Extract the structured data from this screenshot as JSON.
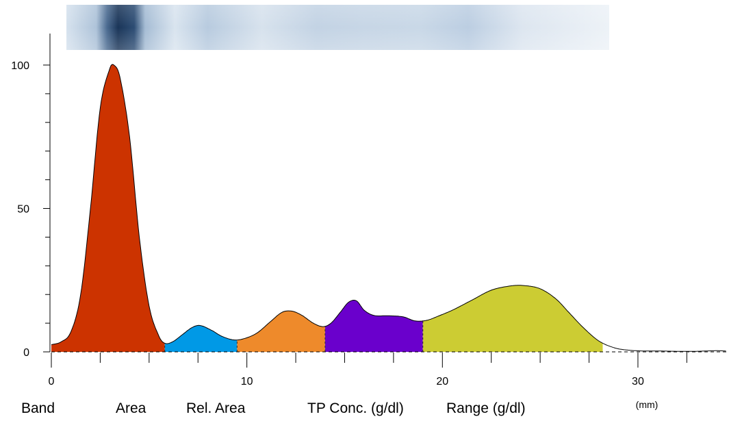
{
  "chart_data": {
    "type": "area",
    "xlabel": "",
    "ylabel": "",
    "x_unit": "(mm)",
    "xlim": [
      0,
      34.5
    ],
    "ylim": [
      0,
      105
    ],
    "x_ticks": [
      0,
      10,
      20,
      30
    ],
    "y_ticks": [
      0,
      50,
      100
    ],
    "gel_strip": {
      "colors": [
        "#1f3a5f",
        "#b9cde2",
        "#e3ebf4"
      ]
    },
    "profile": {
      "x": [
        0,
        0.5,
        1,
        1.5,
        2,
        2.5,
        3,
        3.2,
        3.5,
        4,
        4.5,
        5,
        5.5,
        5.8,
        6.2,
        6.7,
        7.2,
        7.6,
        8.2,
        8.7,
        9.3,
        9.8,
        10.5,
        11.2,
        11.8,
        12.3,
        12.8,
        13.4,
        13.9,
        14.3,
        14.8,
        15.2,
        15.6,
        16,
        16.5,
        17.2,
        18,
        18.6,
        19.2,
        19.8,
        20.5,
        21.5,
        22.5,
        23.5,
        24.2,
        25,
        25.8,
        26.5,
        27.2,
        28,
        28.8,
        29.5,
        30.3,
        31,
        32,
        33,
        34,
        34.5
      ],
      "y": [
        2.5,
        3.5,
        7,
        20,
        50,
        85,
        99,
        100,
        96,
        75,
        40,
        16,
        5.5,
        3,
        3.5,
        6,
        8.5,
        9.2,
        7.5,
        5.5,
        4.2,
        4.5,
        6.5,
        10.5,
        13.8,
        14.2,
        12.8,
        10,
        8.8,
        10,
        14,
        17.3,
        17.8,
        14.5,
        12.7,
        12.6,
        12.2,
        10.8,
        11,
        12.5,
        14.5,
        18,
        21.5,
        23,
        23.1,
        22,
        18.5,
        13.5,
        8.5,
        3.8,
        1.4,
        0.6,
        0.3,
        0.3,
        0.2,
        0.2,
        0.4,
        0.3
      ]
    },
    "fractions": [
      {
        "from": 0,
        "to": 5.8,
        "color": "#cc3300"
      },
      {
        "from": 5.8,
        "to": 9.5,
        "color": "#0099e6"
      },
      {
        "from": 9.5,
        "to": 14,
        "color": "#ee8a2b"
      },
      {
        "from": 14,
        "to": 19,
        "color": "#6a00cc"
      },
      {
        "from": 19,
        "to": 28.2,
        "color": "#cccc33"
      }
    ]
  },
  "table": {
    "headers": [
      "Band",
      "Area",
      "Rel. Area",
      "TP Conc. (g/dl)",
      "Range (g/dl)"
    ]
  }
}
